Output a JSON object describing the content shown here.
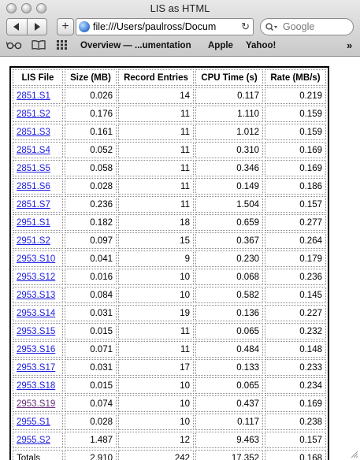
{
  "window": {
    "title": "LIS as HTML"
  },
  "toolbar": {
    "back_icon": "back-arrow-icon",
    "forward_icon": "forward-arrow-icon",
    "add_label": "+",
    "url": "file:///Users/paulross/Docum",
    "reload_icon": "reload-icon",
    "search_placeholder": "Google"
  },
  "bookmarks": {
    "items": [
      "Overview — ...umentation",
      "Apple",
      "Yahoo!"
    ],
    "more_label": "»"
  },
  "table": {
    "headers": [
      "LIS File",
      "Size (MB)",
      "Record Entries",
      "CPU Time (s)",
      "Rate (MB/s)"
    ],
    "rows": [
      {
        "file": "2851.S1",
        "size": "0.026",
        "records": "14",
        "cpu": "0.117",
        "rate": "0.219"
      },
      {
        "file": "2851.S2",
        "size": "0.176",
        "records": "11",
        "cpu": "1.110",
        "rate": "0.159"
      },
      {
        "file": "2851.S3",
        "size": "0.161",
        "records": "11",
        "cpu": "1.012",
        "rate": "0.159"
      },
      {
        "file": "2851.S4",
        "size": "0.052",
        "records": "11",
        "cpu": "0.310",
        "rate": "0.169"
      },
      {
        "file": "2851.S5",
        "size": "0.058",
        "records": "11",
        "cpu": "0.346",
        "rate": "0.169"
      },
      {
        "file": "2851.S6",
        "size": "0.028",
        "records": "11",
        "cpu": "0.149",
        "rate": "0.186"
      },
      {
        "file": "2851.S7",
        "size": "0.236",
        "records": "11",
        "cpu": "1.504",
        "rate": "0.157"
      },
      {
        "file": "2951.S1",
        "size": "0.182",
        "records": "18",
        "cpu": "0.659",
        "rate": "0.277"
      },
      {
        "file": "2951.S2",
        "size": "0.097",
        "records": "15",
        "cpu": "0.367",
        "rate": "0.264"
      },
      {
        "file": "2953.S10",
        "size": "0.041",
        "records": "9",
        "cpu": "0.230",
        "rate": "0.179"
      },
      {
        "file": "2953.S12",
        "size": "0.016",
        "records": "10",
        "cpu": "0.068",
        "rate": "0.236"
      },
      {
        "file": "2953.S13",
        "size": "0.084",
        "records": "10",
        "cpu": "0.582",
        "rate": "0.145"
      },
      {
        "file": "2953.S14",
        "size": "0.031",
        "records": "19",
        "cpu": "0.136",
        "rate": "0.227"
      },
      {
        "file": "2953.S15",
        "size": "0.015",
        "records": "11",
        "cpu": "0.065",
        "rate": "0.232"
      },
      {
        "file": "2953.S16",
        "size": "0.071",
        "records": "11",
        "cpu": "0.484",
        "rate": "0.148"
      },
      {
        "file": "2953.S17",
        "size": "0.031",
        "records": "17",
        "cpu": "0.133",
        "rate": "0.233"
      },
      {
        "file": "2953.S18",
        "size": "0.015",
        "records": "10",
        "cpu": "0.065",
        "rate": "0.234"
      },
      {
        "file": "2953.S19",
        "size": "0.074",
        "records": "10",
        "cpu": "0.437",
        "rate": "0.169"
      },
      {
        "file": "2955.S1",
        "size": "0.028",
        "records": "10",
        "cpu": "0.117",
        "rate": "0.238"
      },
      {
        "file": "2955.S2",
        "size": "1.487",
        "records": "12",
        "cpu": "9.463",
        "rate": "0.157"
      }
    ],
    "totals": {
      "label": "Totals",
      "size": "2.910",
      "records": "242",
      "cpu": "17.352",
      "rate": "0.168"
    }
  },
  "colors": {
    "link": "#1c1ce0",
    "visited_link": "#6b2e7a"
  }
}
